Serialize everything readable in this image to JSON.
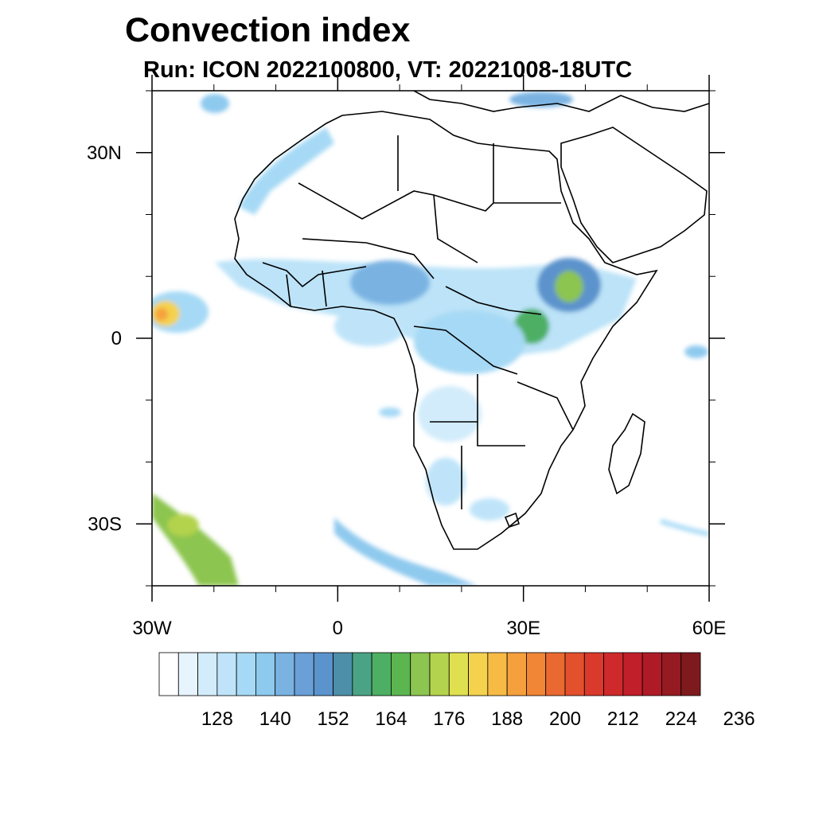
{
  "title": "Convection index",
  "subtitle": "Run: ICON 2022100800,  VT: 20221008-18UTC",
  "map": {
    "region": "Africa",
    "lon_range": [
      -30,
      60
    ],
    "lat_range": [
      -40,
      40
    ],
    "lon_ticks": [
      {
        "value": -30,
        "label": "30W"
      },
      {
        "value": 0,
        "label": "0"
      },
      {
        "value": 30,
        "label": "30E"
      },
      {
        "value": 60,
        "label": "60E"
      }
    ],
    "lat_ticks": [
      {
        "value": 30,
        "label": "30N"
      },
      {
        "value": 0,
        "label": "0"
      },
      {
        "value": -30,
        "label": "30S"
      }
    ]
  },
  "colorbar": {
    "colors": [
      "#ffffff",
      "#e6f4fd",
      "#d2ecfb",
      "#bfe4f9",
      "#a6d9f5",
      "#8ec9ee",
      "#7ab3e2",
      "#6aa0d7",
      "#5b93cc",
      "#4d8fa8",
      "#4aa385",
      "#4daf63",
      "#5bb650",
      "#8cc54f",
      "#b3d34e",
      "#dfe04f",
      "#f4d24d",
      "#f7bb45",
      "#f6a03d",
      "#f18637",
      "#ea6930",
      "#e2502c",
      "#d93a2b",
      "#ce2a2b",
      "#c11f2a",
      "#ae1b27",
      "#951a22",
      "#7e1a1e"
    ],
    "labels": [
      "128",
      "140",
      "152",
      "164",
      "176",
      "188",
      "200",
      "212",
      "224",
      "236"
    ]
  }
}
